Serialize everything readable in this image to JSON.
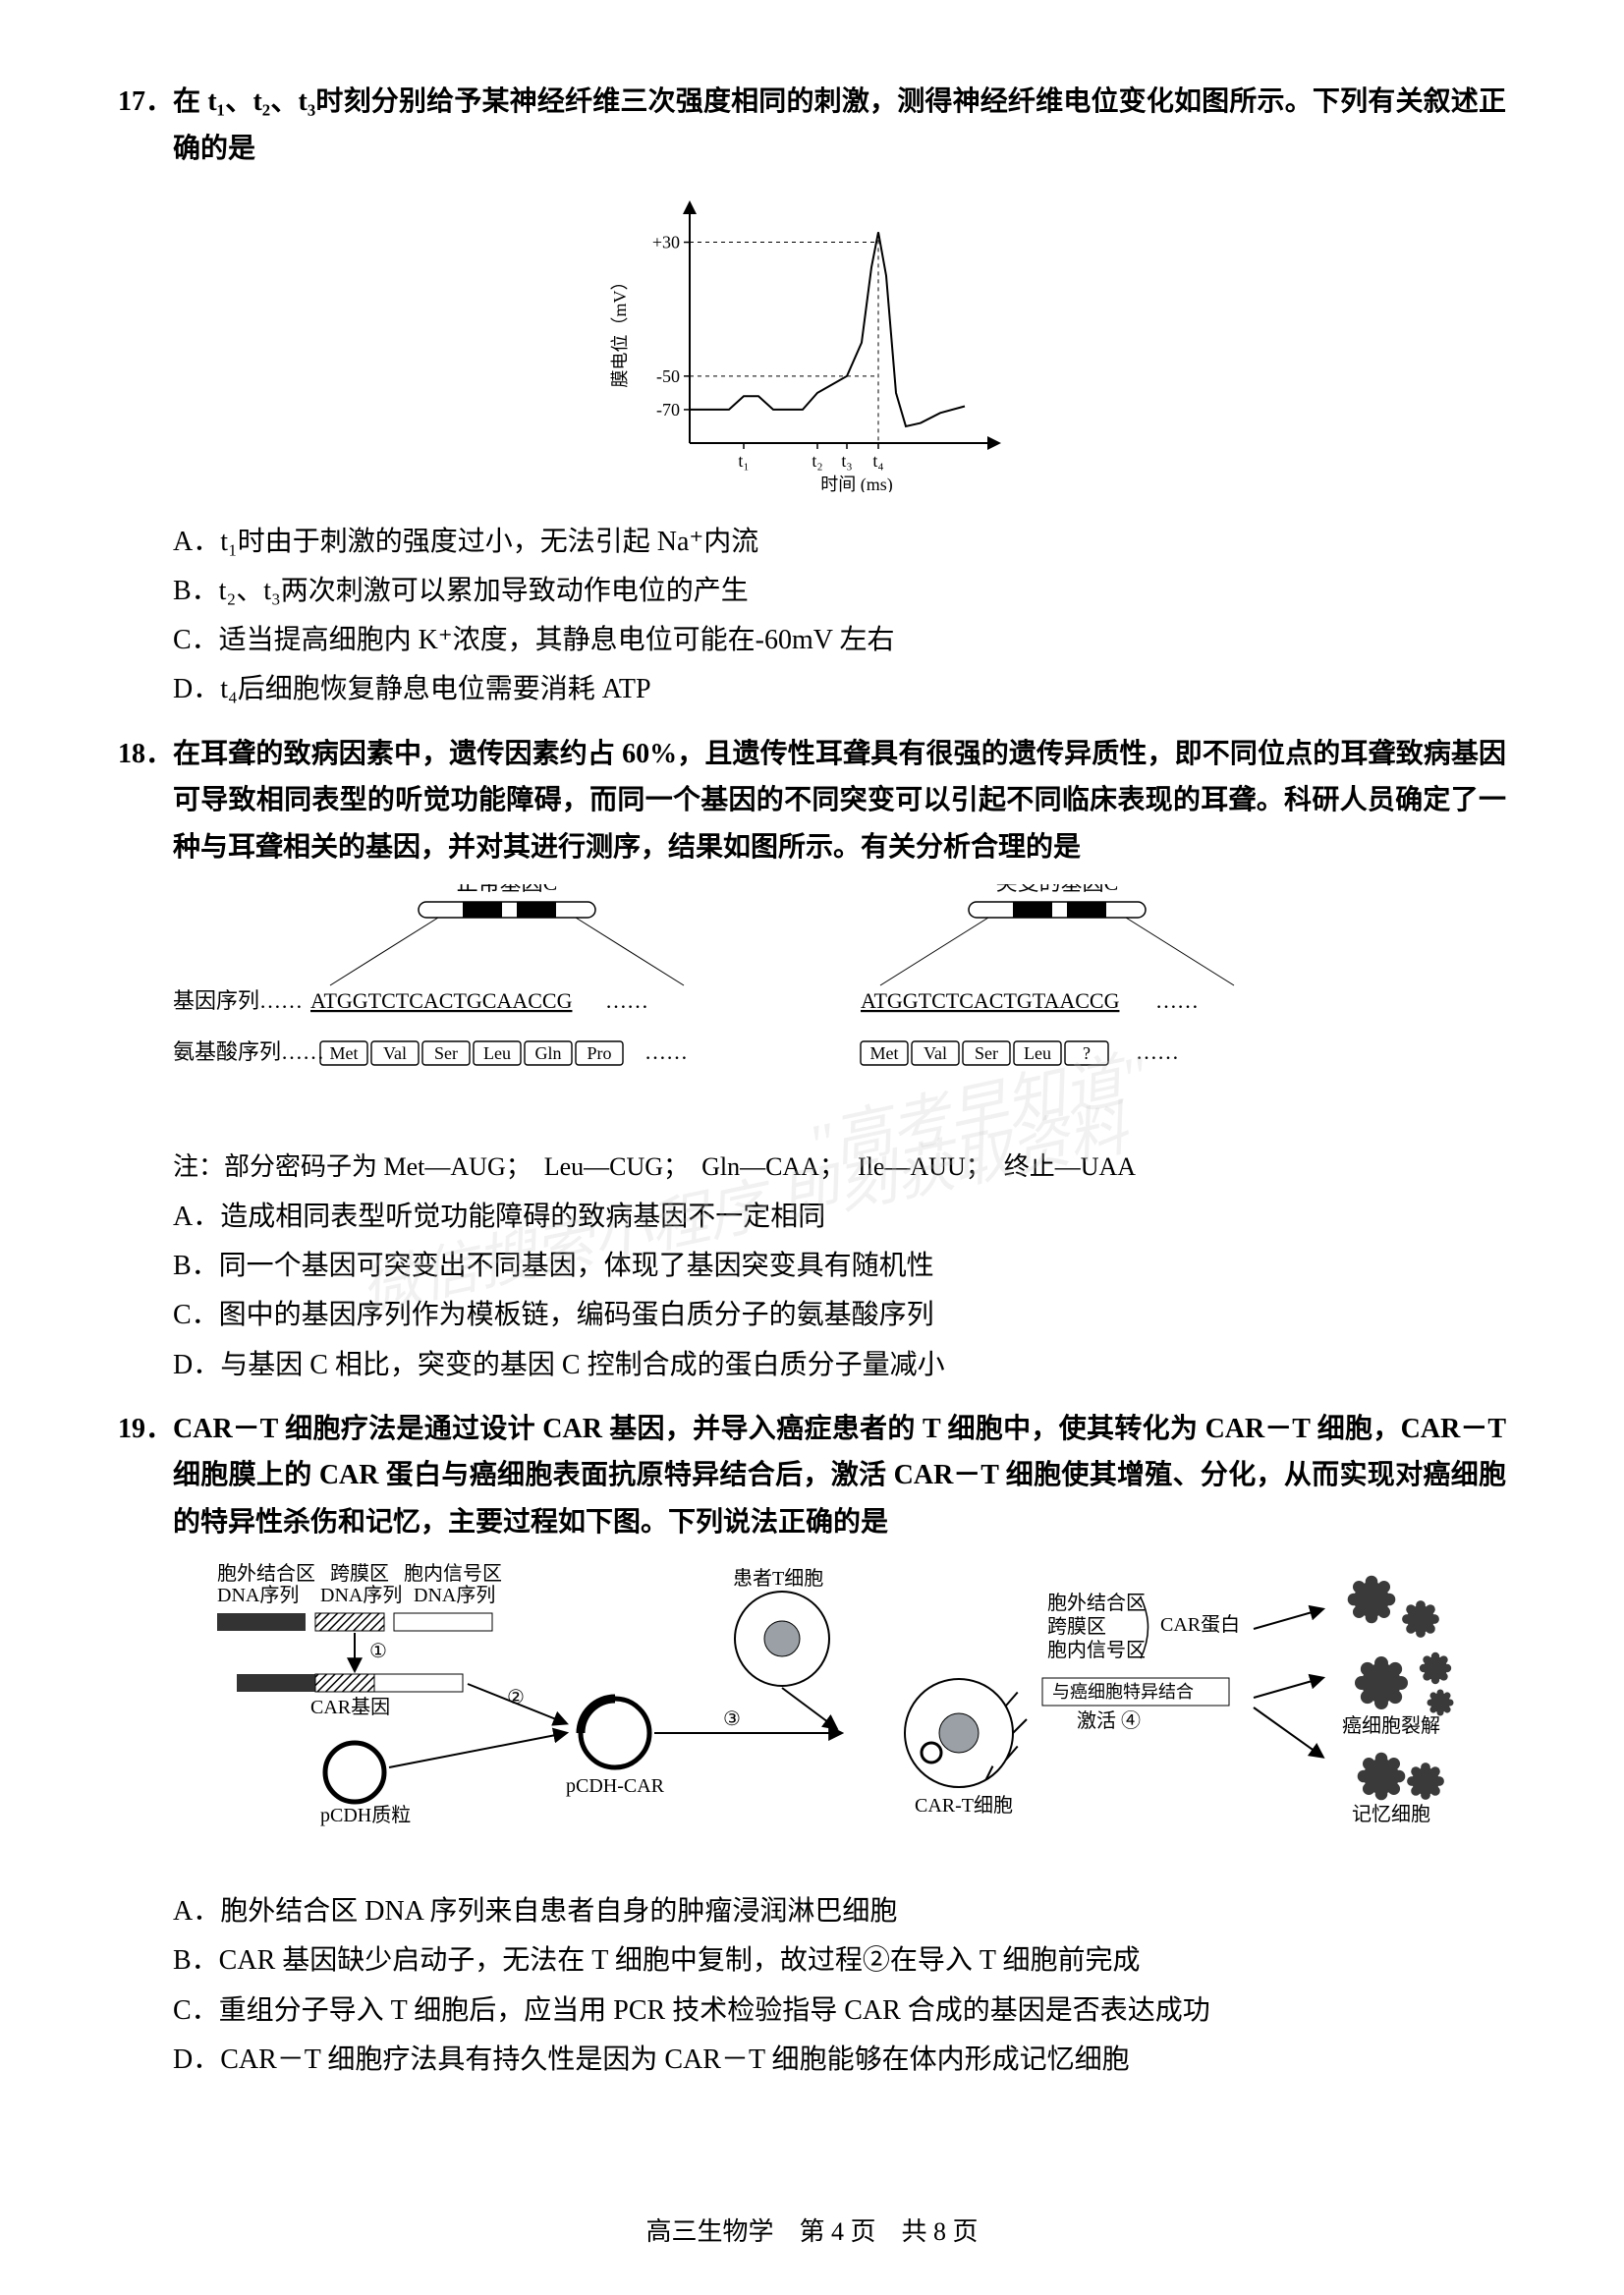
{
  "q17": {
    "number": "17．",
    "stem": "在 t₁、t₂、t₃时刻分别给予某神经纤维三次强度相同的刺激，测得神经纤维电位变化如图所示。下列有关叙述正确的是",
    "chart": {
      "type": "line",
      "ylabel": "膜电位（mV）",
      "xlabel": "时间 (ms)",
      "yticks": [
        "+30",
        "-50",
        "-70"
      ],
      "xticks": [
        "t₁",
        "t₂",
        "t₃",
        "t₄"
      ],
      "axis_color": "#000000",
      "line_color": "#000000",
      "background_color": "#ffffff",
      "line_width": 2,
      "font_size": 18,
      "points": [
        [
          0,
          -70
        ],
        [
          40,
          -70
        ],
        [
          55,
          -62
        ],
        [
          70,
          -62
        ],
        [
          85,
          -70
        ],
        [
          115,
          -70
        ],
        [
          130,
          -60
        ],
        [
          145,
          -55
        ],
        [
          160,
          -50
        ],
        [
          175,
          -30
        ],
        [
          185,
          15
        ],
        [
          192,
          36
        ],
        [
          200,
          10
        ],
        [
          210,
          -60
        ],
        [
          220,
          -80
        ],
        [
          235,
          -78
        ],
        [
          255,
          -72
        ],
        [
          280,
          -68
        ]
      ],
      "ylim": [
        -90,
        45
      ],
      "xlim": [
        0,
        300
      ]
    },
    "options": {
      "A": "A．t₁时由于刺激的强度过小，无法引起 Na⁺内流",
      "B": "B．t₂、t₃两次刺激可以累加导致动作电位的产生",
      "C": "C．适当提高细胞内 K⁺浓度，其静息电位可能在-60mV 左右",
      "D": "D．t₄后细胞恢复静息电位需要消耗 ATP"
    }
  },
  "q18": {
    "number": "18．",
    "stem": "在耳聋的致病因素中，遗传因素约占 60%，且遗传性耳聋具有很强的遗传异质性，即不同位点的耳聋致病基因可导致相同表型的听觉功能障碍，而同一个基因的不同突变可以引起不同临床表现的耳聋。科研人员确定了一种与耳聋相关的基因，并对其进行测序，结果如图所示。有关分析合理的是",
    "diagram": {
      "type": "infographic",
      "normal_gene_label": "正常基因C",
      "mutant_gene_label": "突变的基因C",
      "row1_label": "基因序列……",
      "normal_seq": "ATGGTCTCACTGCAACCG",
      "mutant_seq": "ATGGTCTCACTGTAACCG",
      "dots": "……",
      "row2_label": "氨基酸序列……",
      "normal_aa": [
        "Met",
        "Val",
        "Ser",
        "Leu",
        "Gln",
        "Pro"
      ],
      "mutant_aa": [
        "Met",
        "Val",
        "Ser",
        "Leu",
        "?"
      ],
      "note_prefix": "注：部分密码子为 ",
      "codons": [
        "Met—AUG；",
        "Leu—CUG；",
        "Gln—CAA；",
        "Ile—AUU；",
        "终止—UAA"
      ],
      "box_border": "#000000",
      "text_color": "#000000",
      "font_size": 22
    },
    "options": {
      "A": "A．造成相同表型听觉功能障碍的致病基因不一定相同",
      "B": "B．同一个基因可突变出不同基因，体现了基因突变具有随机性",
      "C": "C．图中的基因序列作为模板链，编码蛋白质分子的氨基酸序列",
      "D": "D．与基因 C 相比，突变的基因 C 控制合成的蛋白质分子量减小"
    }
  },
  "q19": {
    "number": "19．",
    "stem": "CAR－T 细胞疗法是通过设计 CAR 基因，并导入癌症患者的 T 细胞中，使其转化为 CAR－T 细胞，CAR－T 细胞膜上的 CAR 蛋白与癌细胞表面抗原特异结合后，激活 CAR－T 细胞使其增殖、分化，从而实现对癌细胞的特异性杀伤和记忆，主要过程如下图。下列说法正确的是",
    "diagram": {
      "type": "flowchart",
      "labels": {
        "extra_bind": "胞外结合区",
        "trans": "跨膜区",
        "intra": "胞内信号区",
        "dna_seq": "DNA序列",
        "car_gene": "CAR基因",
        "pcdh": "pCDH质粒",
        "pcdh_car": "pCDH-CAR",
        "patient_t": "患者T细胞",
        "car_t": "CAR-T细胞",
        "car_protein": "CAR蛋白",
        "specific": "与癌细胞特异结合",
        "activate": "激活 ④",
        "cancer_lysis": "癌细胞裂解",
        "memory": "记忆细胞",
        "step1": "①",
        "step2": "②",
        "step3": "③"
      },
      "colors": {
        "gene_block": "#333333",
        "gene_hatched": "#888888",
        "plasmid_stroke": "#000000",
        "cell_stroke": "#000000",
        "nucleus_fill": "#9aa0a6",
        "cancer_fill": "#3a3a3a",
        "arrow": "#000000"
      },
      "font_size": 20
    },
    "options": {
      "A": "A．胞外结合区 DNA 序列来自患者自身的肿瘤浸润淋巴细胞",
      "B": "B．CAR 基因缺少启动子，无法在 T 细胞中复制，故过程②在导入 T 细胞前完成",
      "C": "C．重组分子导入 T 细胞后，应当用 PCR 技术检验指导 CAR 合成的基因是否表达成功",
      "D": "D．CAR－T 细胞疗法具有持久性是因为 CAR－T 细胞能够在体内形成记忆细胞"
    }
  },
  "footer": {
    "text": "高三生物学　第 4 页　共 8 页"
  },
  "watermark": {
    "line1": "\"高考早知道\"",
    "line2": "微信搜索小程序 即刻获取资料"
  }
}
